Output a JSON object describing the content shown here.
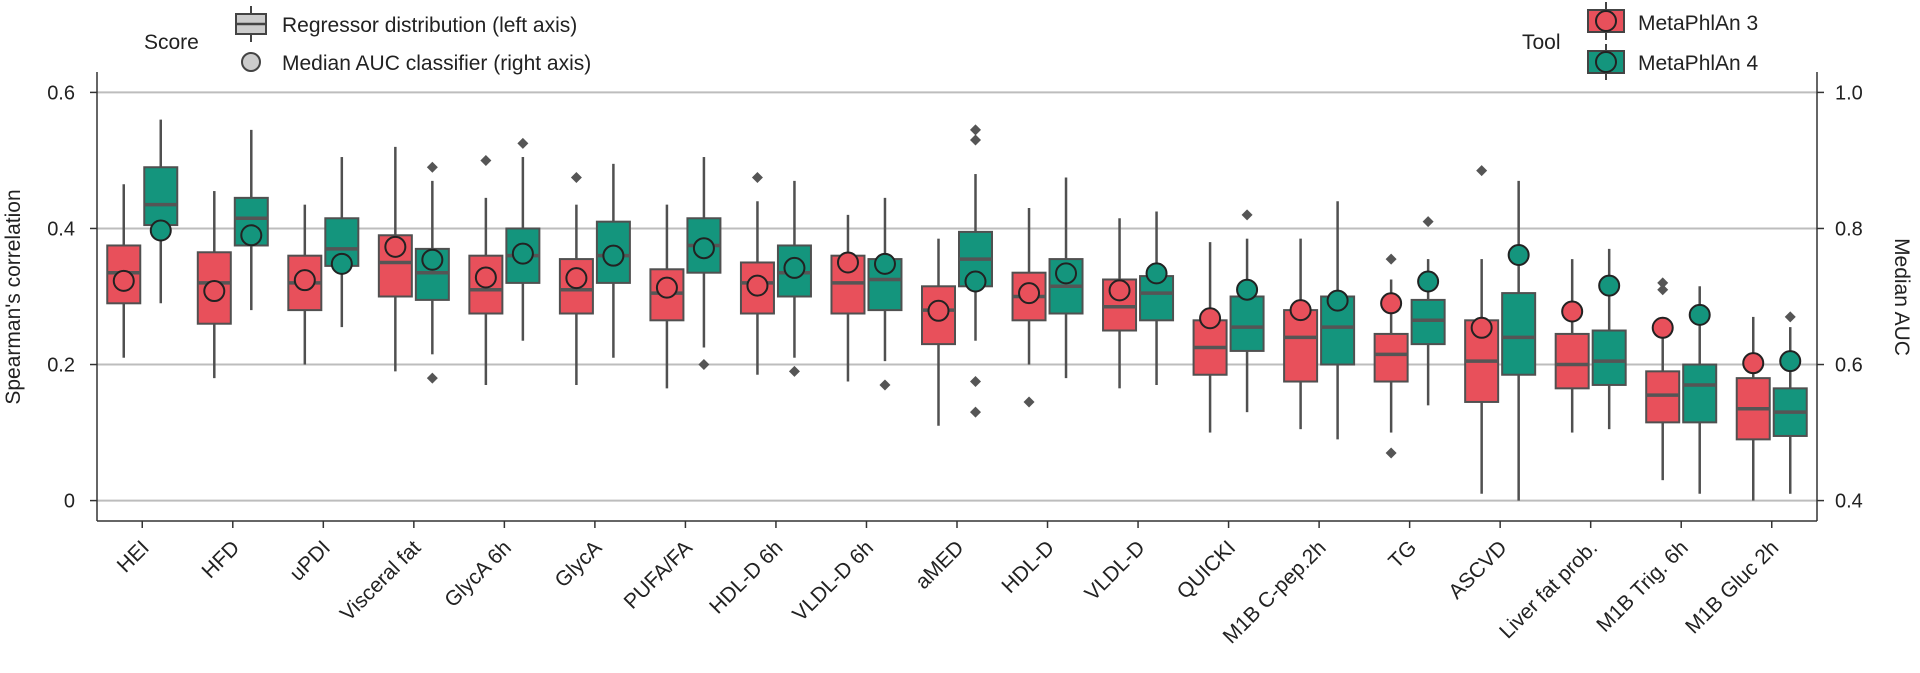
{
  "chart_data": {
    "type": "box",
    "categories": [
      "HEI",
      "HFD",
      "uPDI",
      "Visceral fat",
      "GlycA 6h",
      "GlycA",
      "PUFA/FA",
      "HDL-D 6h",
      "VLDL-D 6h",
      "aMED",
      "HDL-D",
      "VLDL-D",
      "QUICKI",
      "M1B C-pep.2h",
      "TG",
      "ASCVD",
      "Liver fat prob.",
      "M1B Trig. 6h",
      "M1B Gluc 2h"
    ],
    "ylabel": "Spearman's correlation",
    "y2label": "Median AUC",
    "ylim": [
      -0.03,
      0.63
    ],
    "y2lim": [
      0.37,
      1.03
    ],
    "yticks": [
      0,
      0.2,
      0.4,
      0.6
    ],
    "yticklabels": [
      "0",
      "0.2",
      "0.4",
      "0.6"
    ],
    "y2ticks": [
      0.4,
      0.6,
      0.8,
      1.0
    ],
    "y2ticklabels": [
      "0.4",
      "0.6",
      "0.8",
      "1.0"
    ],
    "grid": "horizontal",
    "score_legend": {
      "title": "Score",
      "box_entry": "Regressor distribution (left axis)",
      "point_entry": "Median AUC classifier (right axis)"
    },
    "tool_legend": {
      "title": "Tool",
      "placement": "top-right"
    },
    "series": [
      {
        "name": "MetaPhlAn 3",
        "color": "#e8505b",
        "boxes": [
          {
            "whislo": 0.21,
            "q1": 0.29,
            "med": 0.335,
            "q3": 0.375,
            "whishi": 0.465,
            "fliers": []
          },
          {
            "whislo": 0.18,
            "q1": 0.26,
            "med": 0.32,
            "q3": 0.365,
            "whishi": 0.455,
            "fliers": []
          },
          {
            "whislo": 0.2,
            "q1": 0.28,
            "med": 0.32,
            "q3": 0.36,
            "whishi": 0.435,
            "fliers": []
          },
          {
            "whislo": 0.19,
            "q1": 0.3,
            "med": 0.35,
            "q3": 0.39,
            "whishi": 0.52,
            "fliers": []
          },
          {
            "whislo": 0.17,
            "q1": 0.275,
            "med": 0.31,
            "q3": 0.36,
            "whishi": 0.445,
            "fliers": [
              0.5
            ]
          },
          {
            "whislo": 0.17,
            "q1": 0.275,
            "med": 0.31,
            "q3": 0.355,
            "whishi": 0.435,
            "fliers": [
              0.475
            ]
          },
          {
            "whislo": 0.165,
            "q1": 0.265,
            "med": 0.305,
            "q3": 0.34,
            "whishi": 0.435,
            "fliers": []
          },
          {
            "whislo": 0.185,
            "q1": 0.275,
            "med": 0.32,
            "q3": 0.35,
            "whishi": 0.44,
            "fliers": [
              0.475
            ]
          },
          {
            "whislo": 0.175,
            "q1": 0.275,
            "med": 0.32,
            "q3": 0.36,
            "whishi": 0.42,
            "fliers": []
          },
          {
            "whislo": 0.11,
            "q1": 0.23,
            "med": 0.28,
            "q3": 0.315,
            "whishi": 0.385,
            "fliers": []
          },
          {
            "whislo": 0.2,
            "q1": 0.265,
            "med": 0.3,
            "q3": 0.335,
            "whishi": 0.43,
            "fliers": [
              0.145
            ]
          },
          {
            "whislo": 0.165,
            "q1": 0.25,
            "med": 0.285,
            "q3": 0.325,
            "whishi": 0.415,
            "fliers": []
          },
          {
            "whislo": 0.1,
            "q1": 0.185,
            "med": 0.225,
            "q3": 0.265,
            "whishi": 0.38,
            "fliers": []
          },
          {
            "whislo": 0.105,
            "q1": 0.175,
            "med": 0.24,
            "q3": 0.28,
            "whishi": 0.385,
            "fliers": []
          },
          {
            "whislo": 0.1,
            "q1": 0.175,
            "med": 0.215,
            "q3": 0.245,
            "whishi": 0.325,
            "fliers": [
              0.355,
              0.07
            ]
          },
          {
            "whislo": 0.01,
            "q1": 0.145,
            "med": 0.205,
            "q3": 0.265,
            "whishi": 0.355,
            "fliers": [
              0.485
            ]
          },
          {
            "whislo": 0.1,
            "q1": 0.165,
            "med": 0.2,
            "q3": 0.245,
            "whishi": 0.355,
            "fliers": []
          },
          {
            "whislo": 0.03,
            "q1": 0.115,
            "med": 0.155,
            "q3": 0.19,
            "whishi": 0.25,
            "fliers": [
              0.31,
              0.32
            ]
          },
          {
            "whislo": 0.0,
            "q1": 0.09,
            "med": 0.135,
            "q3": 0.18,
            "whishi": 0.27,
            "fliers": []
          }
        ],
        "median_auc": [
          0.723,
          0.708,
          0.724,
          0.773,
          0.728,
          0.727,
          0.713,
          0.716,
          0.75,
          0.679,
          0.705,
          0.709,
          0.668,
          0.68,
          0.69,
          0.654,
          0.678,
          0.654,
          0.602
        ]
      },
      {
        "name": "MetaPhlAn 4",
        "color": "#14957d",
        "boxes": [
          {
            "whislo": 0.29,
            "q1": 0.405,
            "med": 0.435,
            "q3": 0.49,
            "whishi": 0.56,
            "fliers": []
          },
          {
            "whislo": 0.28,
            "q1": 0.375,
            "med": 0.415,
            "q3": 0.445,
            "whishi": 0.545,
            "fliers": []
          },
          {
            "whislo": 0.255,
            "q1": 0.345,
            "med": 0.37,
            "q3": 0.415,
            "whishi": 0.505,
            "fliers": []
          },
          {
            "whislo": 0.215,
            "q1": 0.295,
            "med": 0.335,
            "q3": 0.37,
            "whishi": 0.47,
            "fliers": [
              0.49,
              0.18
            ]
          },
          {
            "whislo": 0.235,
            "q1": 0.32,
            "med": 0.36,
            "q3": 0.4,
            "whishi": 0.505,
            "fliers": [
              0.525
            ]
          },
          {
            "whislo": 0.21,
            "q1": 0.32,
            "med": 0.36,
            "q3": 0.41,
            "whishi": 0.495,
            "fliers": []
          },
          {
            "whislo": 0.225,
            "q1": 0.335,
            "med": 0.375,
            "q3": 0.415,
            "whishi": 0.505,
            "fliers": [
              0.2
            ]
          },
          {
            "whislo": 0.21,
            "q1": 0.3,
            "med": 0.335,
            "q3": 0.375,
            "whishi": 0.47,
            "fliers": [
              0.19
            ]
          },
          {
            "whislo": 0.205,
            "q1": 0.28,
            "med": 0.325,
            "q3": 0.355,
            "whishi": 0.445,
            "fliers": [
              0.17
            ]
          },
          {
            "whislo": 0.235,
            "q1": 0.315,
            "med": 0.355,
            "q3": 0.395,
            "whishi": 0.48,
            "fliers": [
              0.545,
              0.53,
              0.175,
              0.13
            ]
          },
          {
            "whislo": 0.18,
            "q1": 0.275,
            "med": 0.315,
            "q3": 0.355,
            "whishi": 0.475,
            "fliers": []
          },
          {
            "whislo": 0.17,
            "q1": 0.265,
            "med": 0.305,
            "q3": 0.33,
            "whishi": 0.425,
            "fliers": []
          },
          {
            "whislo": 0.13,
            "q1": 0.22,
            "med": 0.255,
            "q3": 0.3,
            "whishi": 0.385,
            "fliers": [
              0.42
            ]
          },
          {
            "whislo": 0.09,
            "q1": 0.2,
            "med": 0.255,
            "q3": 0.3,
            "whishi": 0.44,
            "fliers": []
          },
          {
            "whislo": 0.14,
            "q1": 0.23,
            "med": 0.265,
            "q3": 0.295,
            "whishi": 0.355,
            "fliers": [
              0.41
            ]
          },
          {
            "whislo": 0.0,
            "q1": 0.185,
            "med": 0.24,
            "q3": 0.305,
            "whishi": 0.47,
            "fliers": []
          },
          {
            "whislo": 0.105,
            "q1": 0.17,
            "med": 0.205,
            "q3": 0.25,
            "whishi": 0.37,
            "fliers": []
          },
          {
            "whislo": 0.01,
            "q1": 0.115,
            "med": 0.17,
            "q3": 0.2,
            "whishi": 0.315,
            "fliers": []
          },
          {
            "whislo": 0.01,
            "q1": 0.095,
            "med": 0.13,
            "q3": 0.165,
            "whishi": 0.255,
            "fliers": [
              0.27
            ]
          }
        ],
        "median_auc": [
          0.797,
          0.79,
          0.748,
          0.754,
          0.763,
          0.76,
          0.771,
          0.742,
          0.748,
          0.722,
          0.734,
          0.734,
          0.71,
          0.694,
          0.722,
          0.761,
          0.716,
          0.673,
          0.605
        ]
      }
    ]
  }
}
